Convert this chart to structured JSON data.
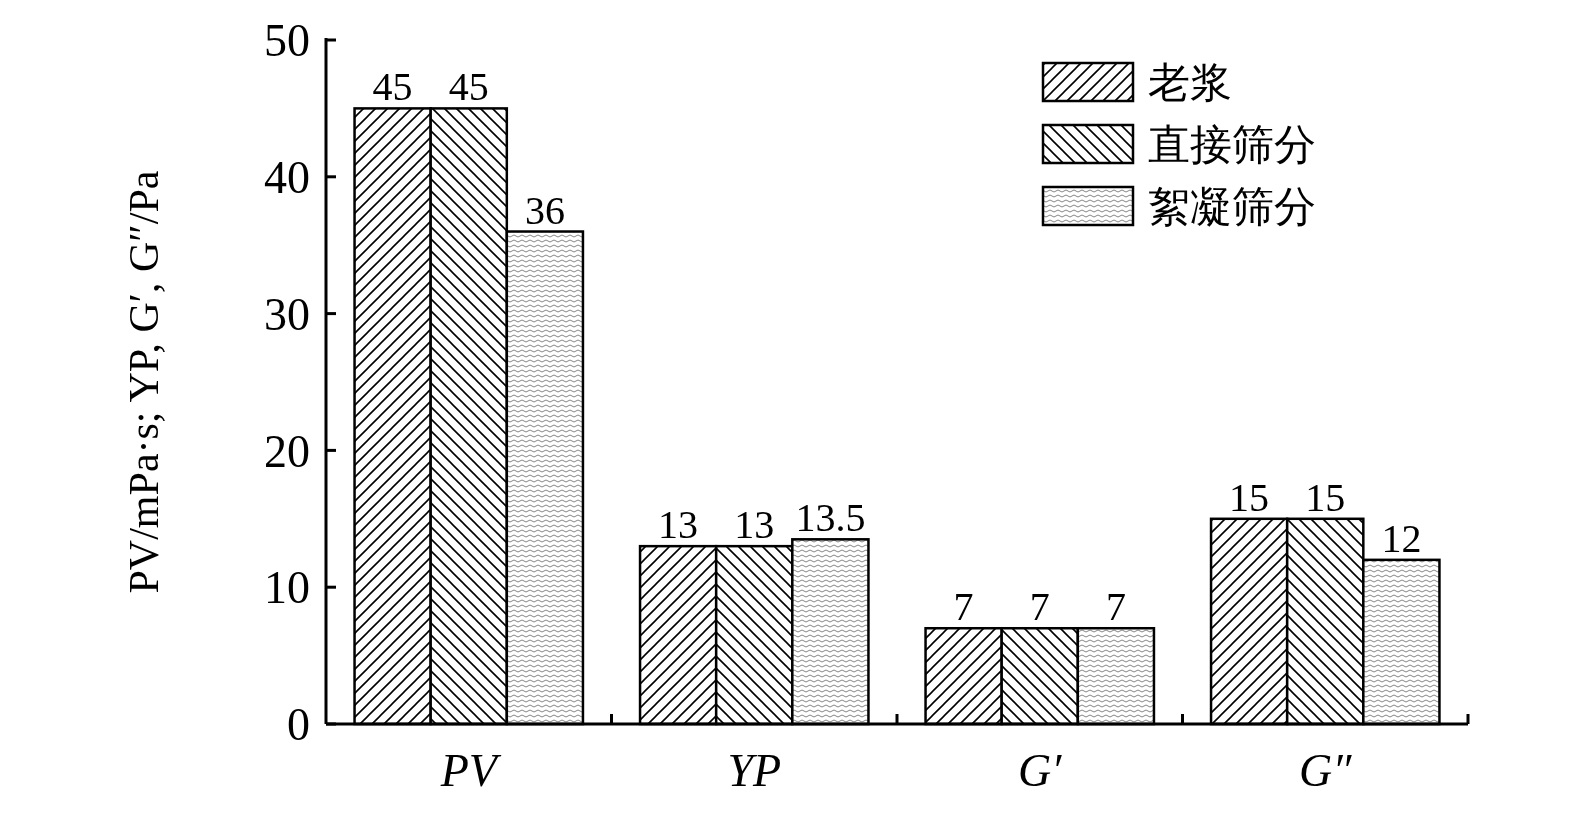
{
  "chart_data": {
    "type": "bar",
    "ylabel": "PV/mPa·s; YP, G′, G″/Pa",
    "categories": [
      "PV",
      "YP",
      "G′",
      "G″"
    ],
    "series": [
      {
        "name": "老浆",
        "color": "#000000",
        "values": [
          45,
          13,
          7,
          15
        ]
      },
      {
        "name": "直接筛分",
        "color": "#000000",
        "values": [
          45,
          13,
          7,
          15
        ]
      },
      {
        "name": "絮凝筛分",
        "color": "#000000",
        "values": [
          36,
          13.5,
          7,
          12
        ]
      }
    ],
    "ylim": [
      0,
      50
    ],
    "yticks": [
      0,
      10,
      20,
      30,
      40,
      50
    ],
    "data_labels": true,
    "legend": "top right",
    "grid": false
  }
}
